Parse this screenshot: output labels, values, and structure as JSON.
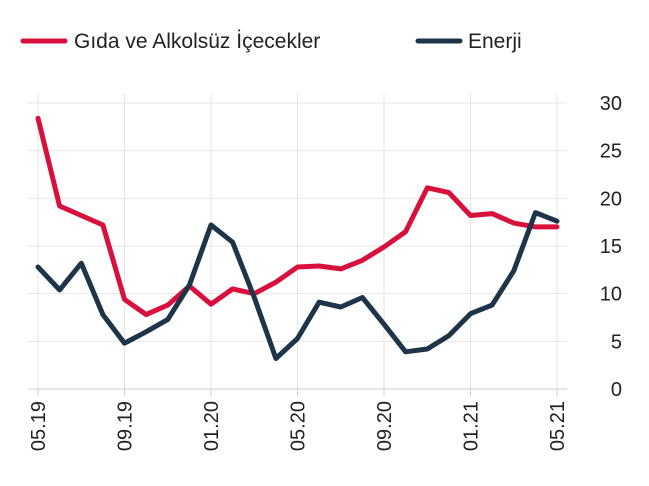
{
  "chart_data": {
    "type": "line",
    "x": [
      "05.19",
      "06.19",
      "07.19",
      "08.19",
      "09.19",
      "10.19",
      "11.19",
      "12.19",
      "01.20",
      "02.20",
      "03.20",
      "04.20",
      "05.20",
      "06.20",
      "07.20",
      "08.20",
      "09.20",
      "10.20",
      "11.20",
      "12.20",
      "01.21",
      "02.21",
      "03.21",
      "04.21",
      "05.21"
    ],
    "x_tick_labels": [
      "05.19",
      "09.19",
      "01.20",
      "05.20",
      "09.20",
      "01.21",
      "05.21"
    ],
    "series": [
      {
        "name": "Gıda ve Alkolsüz İçecekler",
        "color": "#d90f3c",
        "values": [
          28.4,
          19.2,
          18.2,
          17.2,
          9.4,
          7.8,
          8.8,
          10.8,
          8.9,
          10.5,
          10.0,
          11.2,
          12.8,
          12.9,
          12.6,
          13.5,
          14.9,
          16.5,
          21.1,
          20.6,
          18.2,
          18.4,
          17.4,
          17.0,
          17.0
        ]
      },
      {
        "name": "Enerji",
        "color": "#1e3549",
        "values": [
          12.8,
          10.4,
          13.2,
          7.8,
          4.8,
          6.0,
          7.3,
          10.9,
          17.2,
          15.4,
          9.6,
          3.2,
          5.3,
          9.1,
          8.6,
          9.6,
          6.8,
          3.9,
          4.2,
          5.6,
          7.9,
          8.8,
          12.4,
          18.5,
          17.6
        ]
      }
    ],
    "y_ticks": [
      0,
      5,
      10,
      15,
      20,
      25,
      30
    ],
    "ylim": [
      0,
      30
    ],
    "y_axis_side": "right",
    "grid": true,
    "legend_position": "top"
  }
}
